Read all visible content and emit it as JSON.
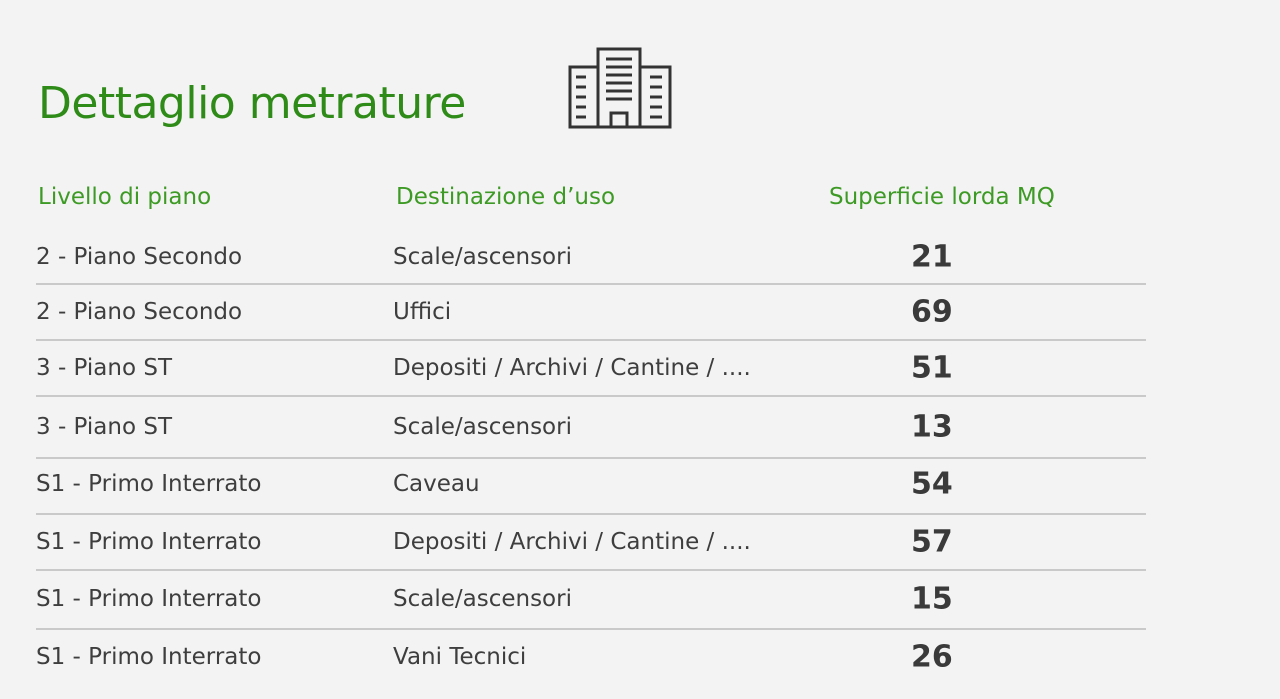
{
  "title": "Dettaglio metrature",
  "icon": "office-building-icon",
  "accent_color": "#2e8b17",
  "headers": {
    "level": "Livello di piano",
    "use": "Destinazione d’uso",
    "area": "Superficie lorda MQ"
  },
  "rows": [
    {
      "level": "2 - Piano Secondo",
      "use": "Scale/ascensori",
      "area": "21"
    },
    {
      "level": "2 - Piano Secondo",
      "use": "Uffici",
      "area": "69"
    },
    {
      "level": "3 - Piano ST",
      "use": "Depositi / Archivi / Cantine / ....",
      "area": "51"
    },
    {
      "level": "3 - Piano ST",
      "use": "Scale/ascensori",
      "area": "13"
    },
    {
      "level": "S1 - Primo Interrato",
      "use": "Caveau",
      "area": "54"
    },
    {
      "level": "S1 - Primo Interrato",
      "use": "Depositi / Archivi / Cantine / ....",
      "area": "57"
    },
    {
      "level": "S1 - Primo Interrato",
      "use": "Scale/ascensori",
      "area": "15"
    },
    {
      "level": "S1 - Primo Interrato",
      "use": "Vani Tecnici",
      "area": "26"
    }
  ]
}
